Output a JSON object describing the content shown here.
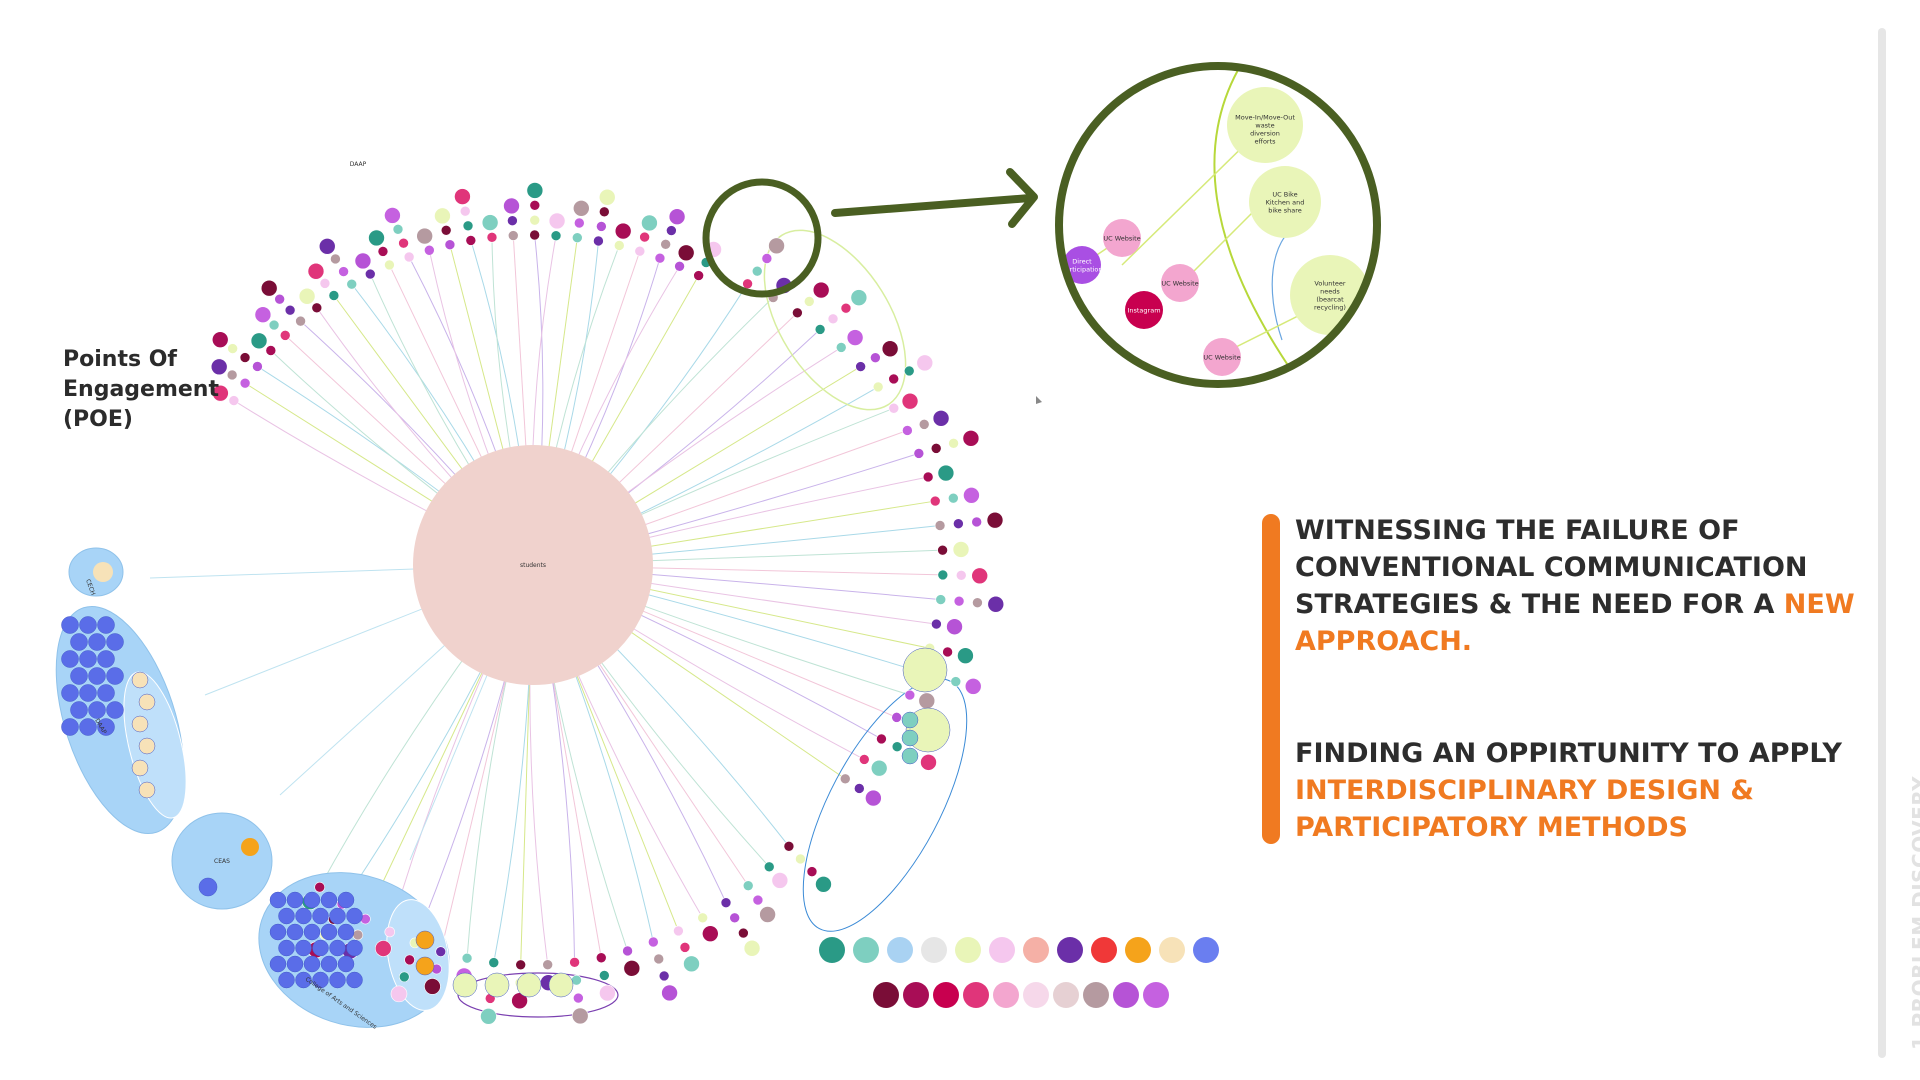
{
  "poe_title": [
    "Points Of",
    "Engagement",
    "(POE)"
  ],
  "hub_label": "students",
  "group_labels": {
    "daap": "DAAP",
    "ceas": "CEAS",
    "cech": "CECH",
    "cas": "College of Arts and Sciences",
    "daap_cluster": "DAAP"
  },
  "zoom_nodes": [
    {
      "label": "Move-In/Move-Out waste diversion efforts",
      "color": "#e9f5b8"
    },
    {
      "label": "UC Bike Kitchen and bike share",
      "color": "#e9f5b8"
    },
    {
      "label": "Volunteer needs (bearcat recycling)",
      "color": "#e9f5b8"
    },
    {
      "label": "UC Website",
      "color": "#f3a6cf"
    },
    {
      "label": "UC Website",
      "color": "#f3a6cf"
    },
    {
      "label": "UC Website",
      "color": "#f3a6cf"
    },
    {
      "label": "Direct participation",
      "color": "#a94fe3"
    },
    {
      "label": "Instagram",
      "color": "#c8004f"
    }
  ],
  "statement_1": {
    "text": "WITNESSING THE FAILURE OF CONVENTIONAL COMMUNICATION STRATEGIES & THE NEED FOR A ",
    "highlight": "NEW APPROACH."
  },
  "statement_2": {
    "text": "FINDING AN OPPIRTUNITY TO APPLY ",
    "highlight": "INTERDISCIPLINARY DESIGN & PARTICIPATORY METHODS"
  },
  "section_label": "1.PROBLEM DISCOVERY",
  "colors": {
    "accent": "#f07a21",
    "zoom_ring": "#4a5f22",
    "hub": "#f0d2cd",
    "group_blue": "#a8d4f7",
    "department_blue": "#6a7ef0"
  },
  "legend_row_1": [
    {
      "color": "#2a9a86"
    },
    {
      "color": "#7ecfc0"
    },
    {
      "color": "#a9d2f2"
    },
    {
      "color": "#e6e6e6"
    },
    {
      "color": "#e9f5b8"
    },
    {
      "color": "#f5c7ee"
    },
    {
      "color": "#f5b0a6"
    },
    {
      "color": "#6b2fa8"
    },
    {
      "color": "#f03838"
    },
    {
      "color": "#f5a31b"
    },
    {
      "color": "#f7e2b8"
    },
    {
      "color": "#6a7ef0"
    }
  ],
  "legend_row_2": [
    {
      "color": "#7a0d37"
    },
    {
      "color": "#a80d56"
    },
    {
      "color": "#c8004f"
    },
    {
      "color": "#e0357a"
    },
    {
      "color": "#f3a6cf"
    },
    {
      "color": "#f6d8ea"
    },
    {
      "color": "#e6d0d3"
    },
    {
      "color": "#b59aa0"
    },
    {
      "color": "#b653d6"
    },
    {
      "color": "#c561e0"
    }
  ]
}
